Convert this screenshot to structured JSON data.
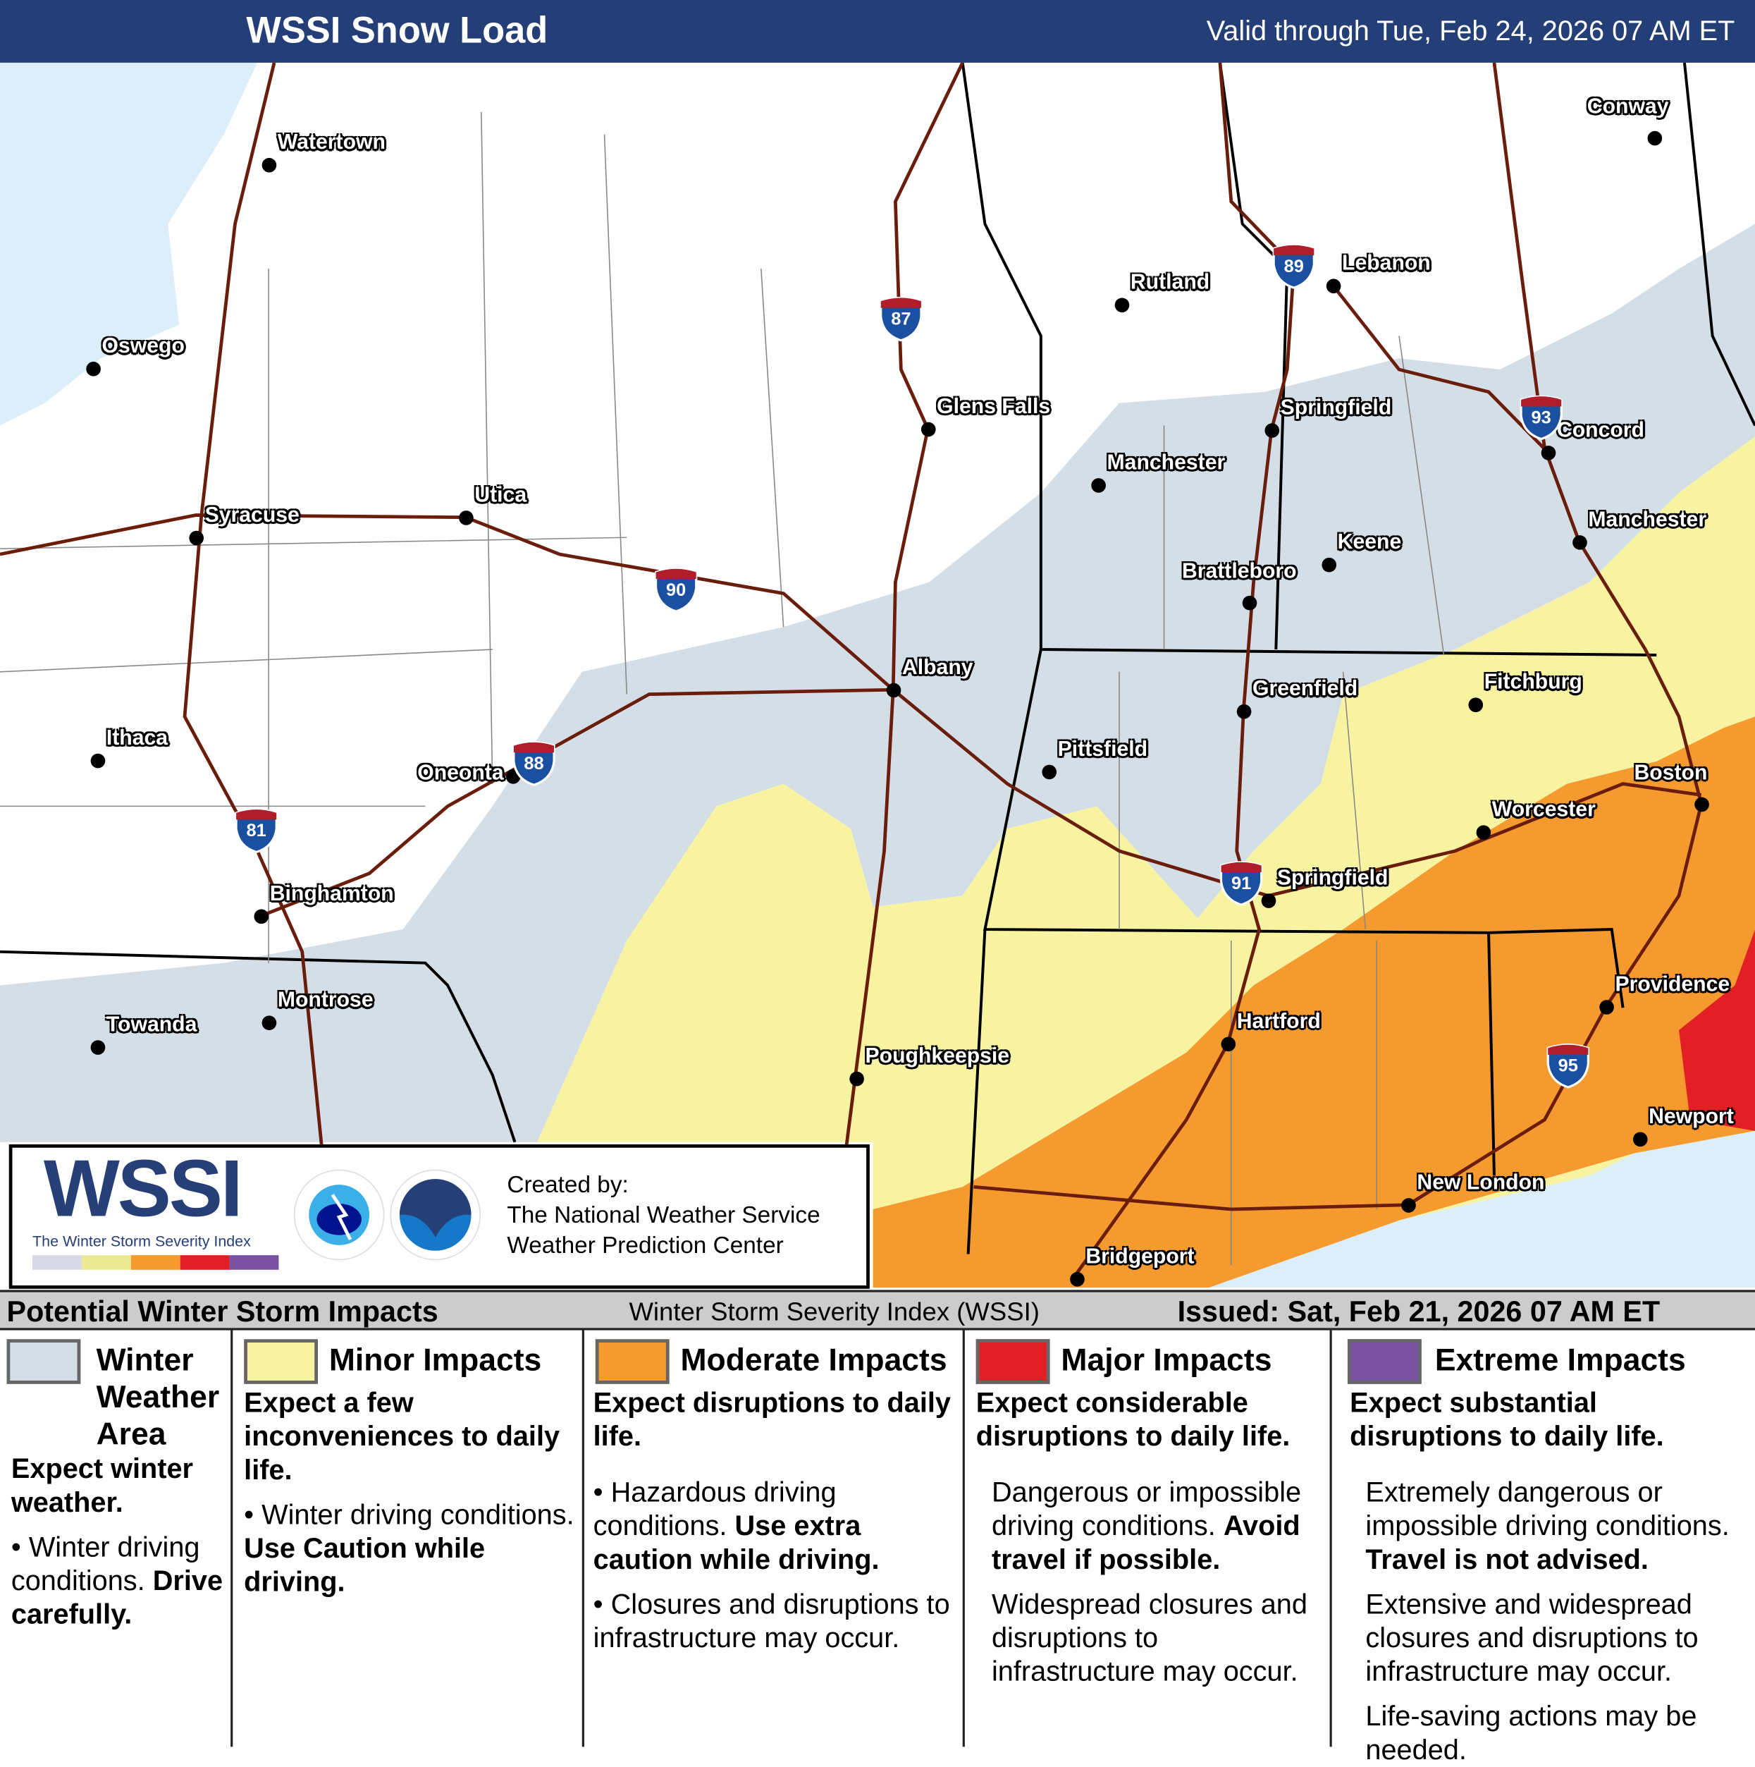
{
  "header": {
    "title": "WSSI Snow Load",
    "valid": "Valid through Tue, Feb 24, 2026 07 AM ET"
  },
  "colors": {
    "header": "#243f77",
    "winter_weather": "#d3dee6",
    "minor": "#f8f3a1",
    "moderate": "#f59a2f",
    "major": "#e31f26",
    "extreme": "#7851a0",
    "water": "#dceefa",
    "interstate": "#6b1d0c"
  },
  "cities": [
    {
      "name": "Watertown",
      "side": "r"
    },
    {
      "name": "Oswego",
      "side": "r"
    },
    {
      "name": "Syracuse",
      "side": "r"
    },
    {
      "name": "Utica",
      "side": "r"
    },
    {
      "name": "Ithaca",
      "side": "r"
    },
    {
      "name": "Oneonta",
      "side": "l"
    },
    {
      "name": "Binghamton",
      "side": "r"
    },
    {
      "name": "Towanda",
      "side": "r"
    },
    {
      "name": "Montrose",
      "side": "r"
    },
    {
      "name": "Albany",
      "side": "r"
    },
    {
      "name": "Glens Falls",
      "side": "r"
    },
    {
      "name": "Poughkeepsie",
      "side": "r"
    },
    {
      "name": "Rutland",
      "side": "r"
    },
    {
      "name": "Manchester",
      "side": "r"
    },
    {
      "name": "Lebanon",
      "side": "r"
    },
    {
      "name": "Springfield",
      "side": "r"
    },
    {
      "name": "Keene",
      "side": "r"
    },
    {
      "name": "Brattleboro",
      "side": "a"
    },
    {
      "name": "Greenfield",
      "side": "r"
    },
    {
      "name": "Pittsfield",
      "side": "r"
    },
    {
      "name": "Springfield",
      "side": "r"
    },
    {
      "name": "Hartford",
      "side": "r"
    },
    {
      "name": "Bridgeport",
      "side": "r"
    },
    {
      "name": "New London",
      "side": "r"
    },
    {
      "name": "Providence",
      "side": "r"
    },
    {
      "name": "Newport",
      "side": "r"
    },
    {
      "name": "Worcester",
      "side": "r"
    },
    {
      "name": "Fitchburg",
      "side": "r"
    },
    {
      "name": "Boston",
      "side": "a"
    },
    {
      "name": "Manchester",
      "side": "r"
    },
    {
      "name": "Concord",
      "side": "r"
    },
    {
      "name": "Conway",
      "side": "a"
    }
  ],
  "interstates": [
    "87",
    "89",
    "93",
    "90",
    "88",
    "81",
    "91",
    "95"
  ],
  "logo": {
    "wordmark": "WSSI",
    "subtitle": "The Winter Storm Severity Index",
    "nws": "NATIONAL WEATHER SERVICE",
    "noaa": "NOAA",
    "created_by": "Created by:",
    "org1": "The National Weather Service",
    "org2": "Weather Prediction Center"
  },
  "banner": {
    "title": "Potential Winter Storm Impacts",
    "index": "Winter Storm Severity Index (WSSI)",
    "issued": "Issued: Sat, Feb 21, 2026 07 AM ET"
  },
  "legend": [
    {
      "title": "Winter Weather Area",
      "expect": "Expect winter weather.",
      "bullet": "Winter driving conditions.",
      "bold": "Drive carefully."
    },
    {
      "title": "Minor Impacts",
      "expect": "Expect a few inconveniences to daily life.",
      "bullet": "Winter driving conditions.",
      "bold": "Use Caution while driving."
    },
    {
      "title": "Moderate Impacts",
      "expect": "Expect disruptions to daily life.",
      "bullet": "Hazardous driving conditions.",
      "bold": "Use extra caution while driving.",
      "bullet2": "Closures and disruptions to infrastructure may occur."
    },
    {
      "title": "Major Impacts",
      "expect": "Expect considerable disruptions to daily life.",
      "text": "Dangerous or impossible driving conditions.",
      "bold": "Avoid travel if possible.",
      "text2": "Widespread closures and disruptions to infrastructure may occur."
    },
    {
      "title": "Extreme Impacts",
      "expect": "Expect substantial disruptions to daily life.",
      "text": "Extremely dangerous or impossible driving conditions.",
      "bold": "Travel is not advised.",
      "text2": "Extensive and widespread closures and disruptions to infrastructure may occur.",
      "text3": "Life-saving actions may be needed."
    }
  ]
}
